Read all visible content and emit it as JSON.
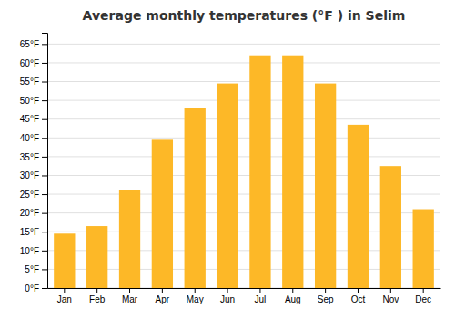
{
  "chart_data": {
    "type": "bar",
    "title": "Average monthly temperatures (°F ) in Selim",
    "categories": [
      "Jan",
      "Feb",
      "Mar",
      "Apr",
      "May",
      "Jun",
      "Jul",
      "Aug",
      "Sep",
      "Oct",
      "Nov",
      "Dec"
    ],
    "values": [
      14.5,
      16.5,
      26,
      39.5,
      48,
      54.5,
      62,
      62,
      54.5,
      43.5,
      32.5,
      21
    ],
    "color": "#FDB827",
    "ylim": [
      0,
      68
    ],
    "yticks": [
      {
        "value": 0,
        "label": "0°F"
      },
      {
        "value": 5,
        "label": "5°F"
      },
      {
        "value": 10,
        "label": "10°F"
      },
      {
        "value": 15,
        "label": "15°F"
      },
      {
        "value": 20,
        "label": "20°F"
      },
      {
        "value": 25,
        "label": "25°F"
      },
      {
        "value": 30,
        "label": "30°F"
      },
      {
        "value": 35,
        "label": "35°F"
      },
      {
        "value": 40,
        "label": "40°F"
      },
      {
        "value": 45,
        "label": "45°F"
      },
      {
        "value": 50,
        "label": "50°F"
      },
      {
        "value": 55,
        "label": "55°F"
      },
      {
        "value": 60,
        "label": "60°F"
      },
      {
        "value": 65,
        "label": "65°F"
      }
    ],
    "grid": true
  }
}
